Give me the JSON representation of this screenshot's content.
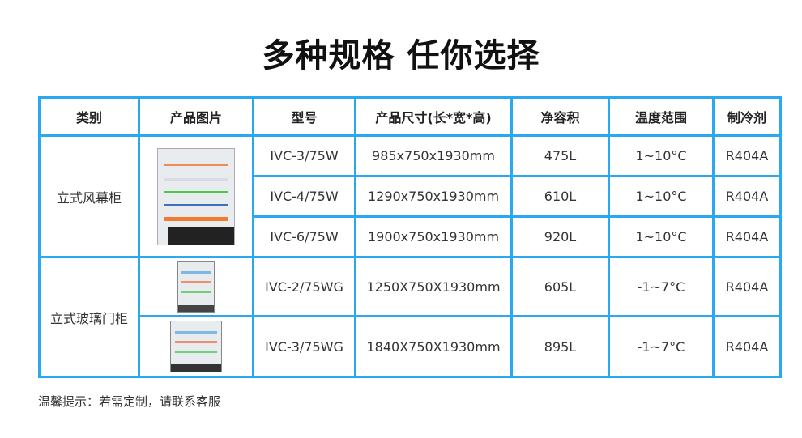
{
  "title": "多种规格 任你选择",
  "headers": [
    "类别",
    "产品图片",
    "型号",
    "产品尺寸(长*宽*高)",
    "净容积",
    "温度范围",
    "制冷剂"
  ],
  "groups": [
    {
      "category": "立式风幕柜",
      "image": "open-air-curtain-cabinet",
      "rows": [
        {
          "model": "IVC-3/75W",
          "size": "985x750x1930mm",
          "volume": "475L",
          "temp": "1~10°C",
          "refrigerant": "R404A"
        },
        {
          "model": "IVC-4/75W",
          "size": "1290x750x1930mm",
          "volume": "610L",
          "temp": "1~10°C",
          "refrigerant": "R404A"
        },
        {
          "model": "IVC-6/75W",
          "size": "1900x750x1930mm",
          "volume": "920L",
          "temp": "1~10°C",
          "refrigerant": "R404A"
        }
      ]
    },
    {
      "category": "立式玻璃门柜",
      "image": "glass-door-cabinet",
      "rows": [
        {
          "model": "IVC-2/75WG",
          "size": "1250X750X1930mm",
          "volume": "605L",
          "temp": "-1~7°C",
          "refrigerant": "R404A"
        },
        {
          "model": "IVC-3/75WG",
          "size": "1840X750X1930mm",
          "volume": "895L",
          "temp": "-1~7°C",
          "refrigerant": "R404A"
        }
      ]
    }
  ],
  "note": "温馨提示：若需定制，请联系客服",
  "colors": {
    "border": "#2aa9f1"
  }
}
